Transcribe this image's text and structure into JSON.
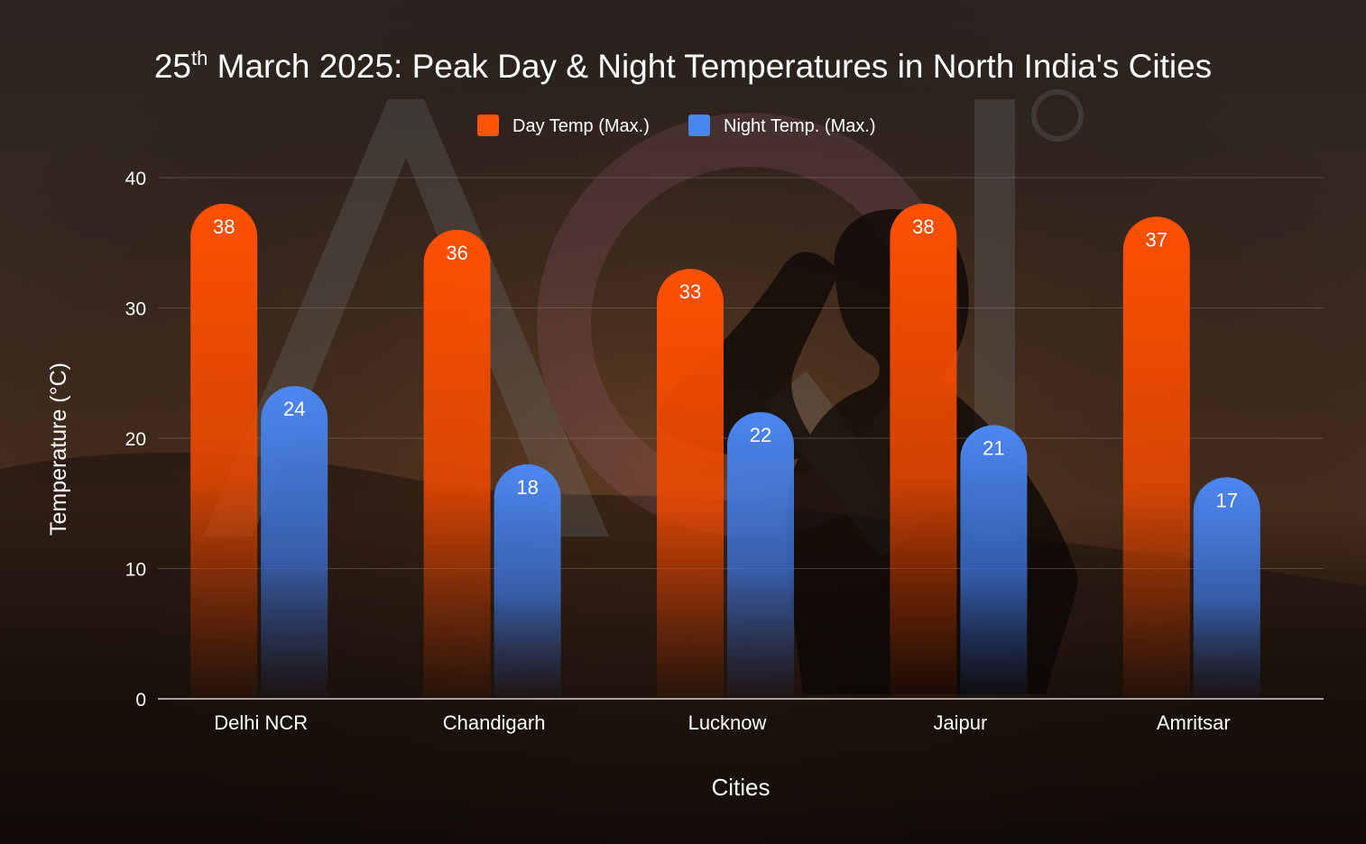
{
  "chart_data": {
    "type": "bar",
    "title_prefix": "25",
    "title_sup": "th",
    "title_rest": " March 2025: Peak Day & Night Temperatures in North India's Cities",
    "categories": [
      "Delhi NCR",
      "Chandigarh",
      "Lucknow",
      "Jaipur",
      "Amritsar"
    ],
    "series": [
      {
        "name": "Day Temp (Max.)",
        "values": [
          38,
          36,
          33,
          38,
          37
        ],
        "color": "#ff5400"
      },
      {
        "name": "Night Temp. (Max.)",
        "values": [
          24,
          18,
          22,
          21,
          17
        ],
        "color": "#4a86f0"
      }
    ],
    "xlabel": "Cities",
    "ylabel": "Temperature (°C)",
    "ylim": [
      0,
      40
    ],
    "yticks": [
      0,
      10,
      20,
      30,
      40
    ],
    "grid": true,
    "legend_position": "top-center",
    "data_labels": true
  },
  "background": {
    "watermark_text": "AQI",
    "description_color": "#3a2418"
  }
}
